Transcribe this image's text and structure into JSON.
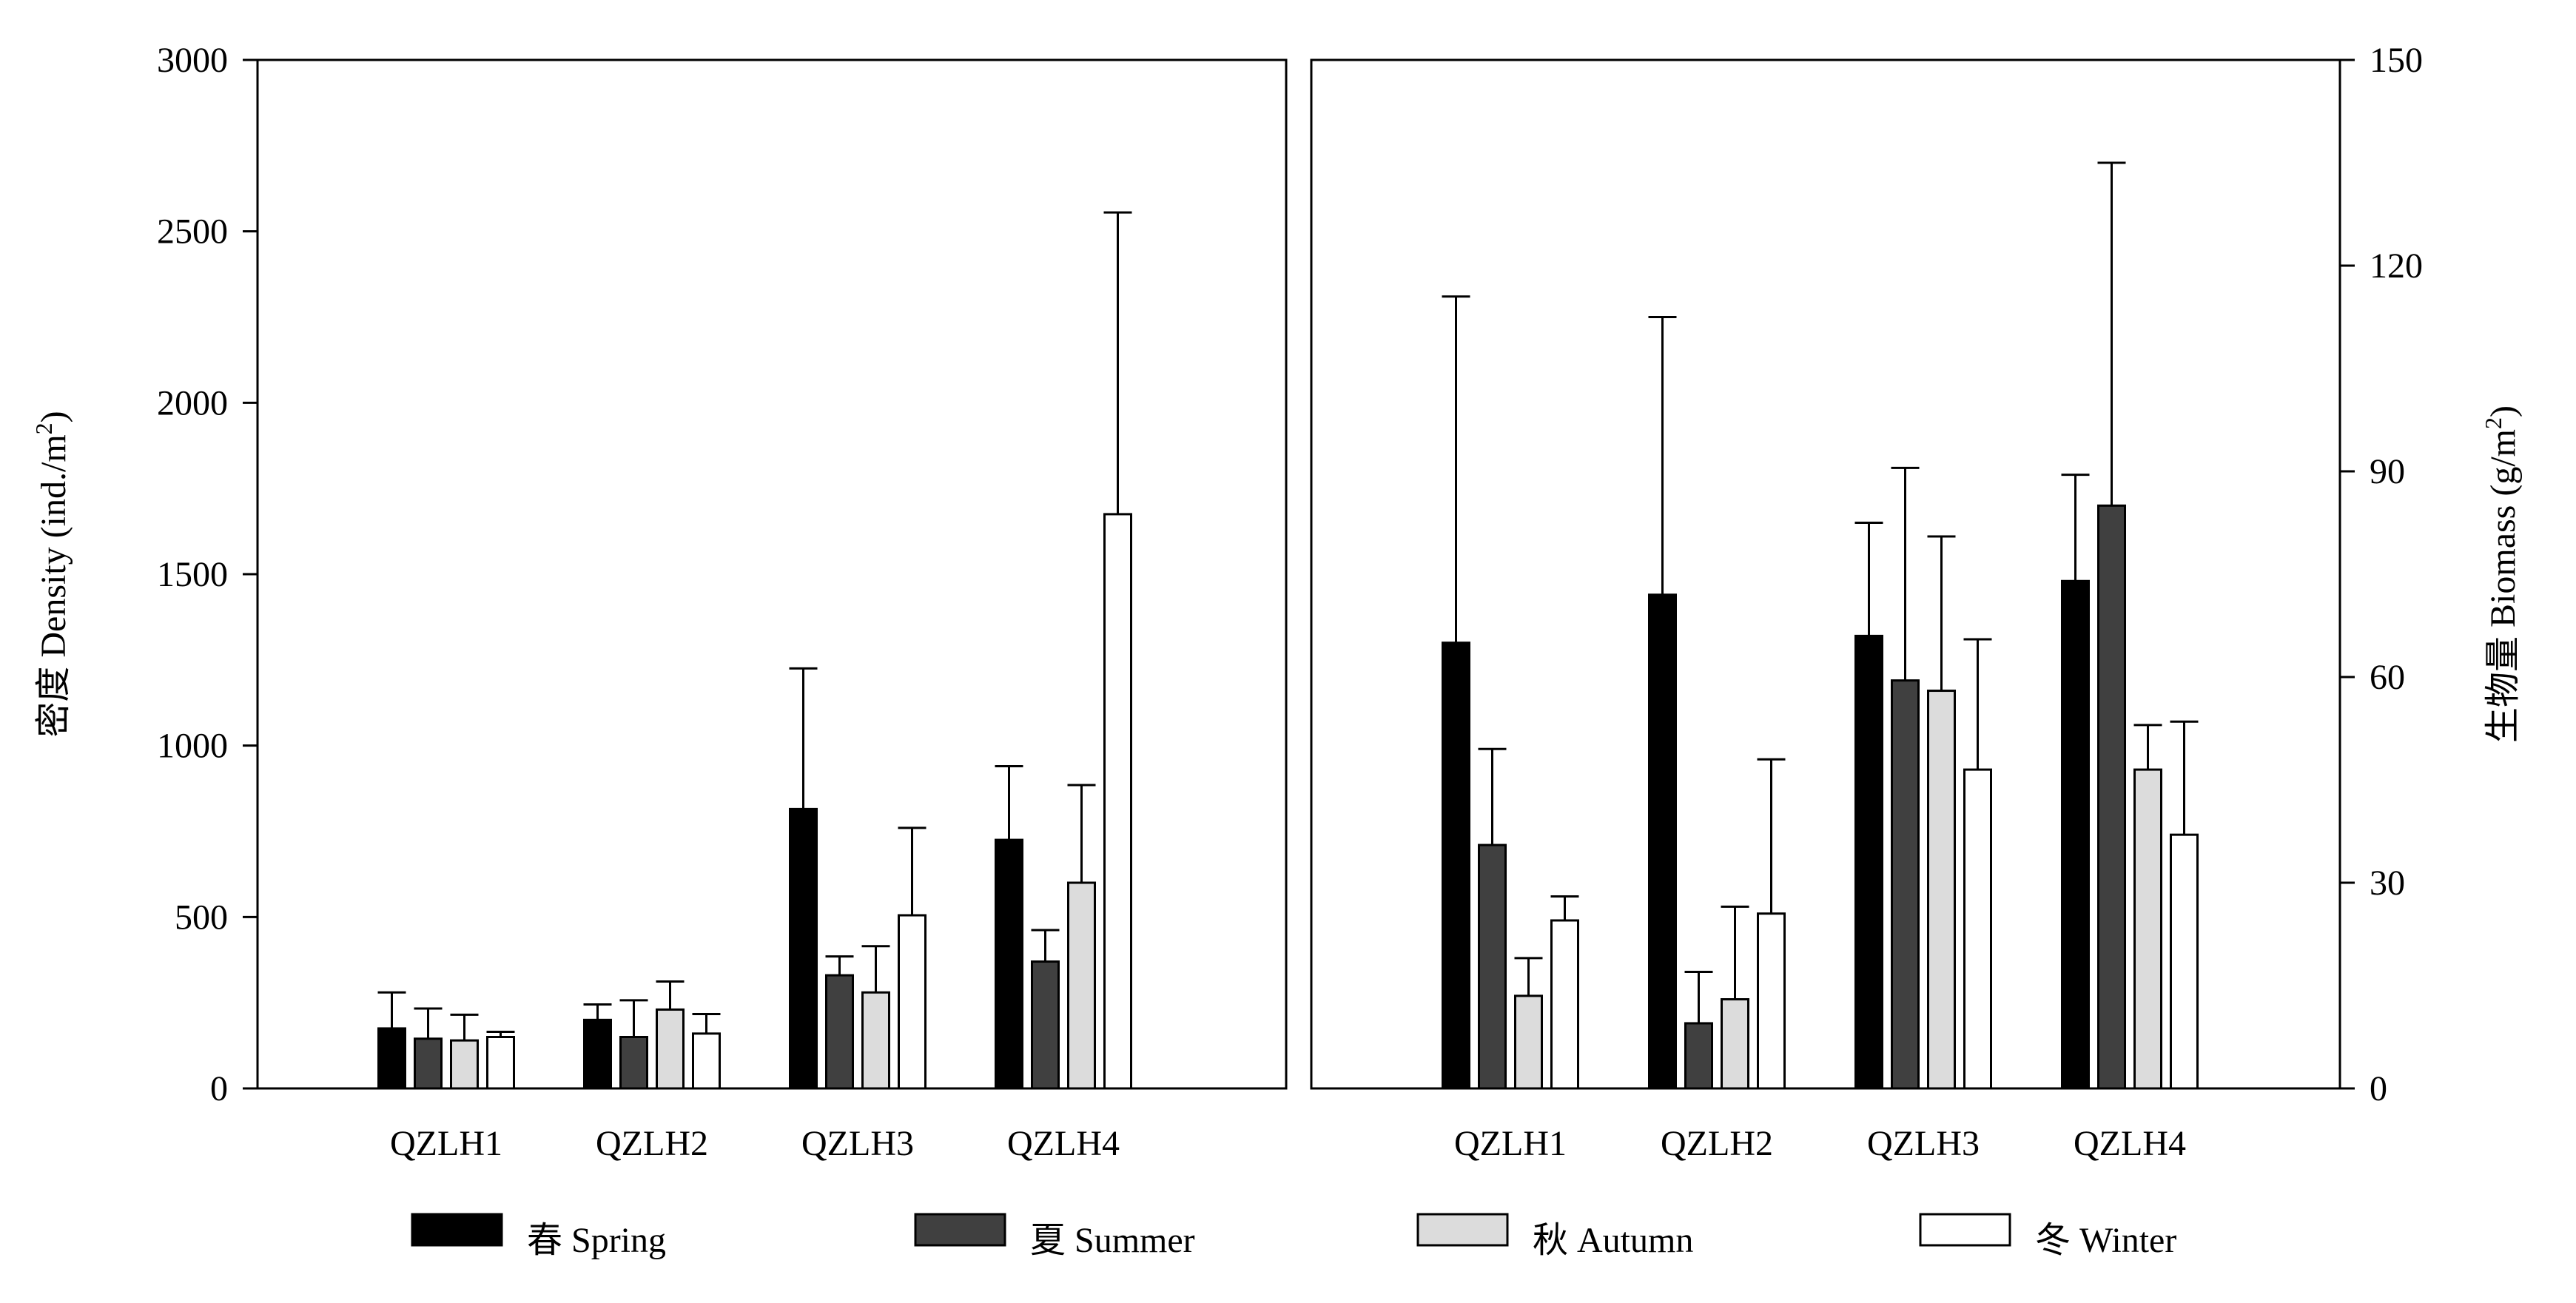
{
  "colors": {
    "spring": "#000000",
    "summer": "#404040",
    "autumn": "#dcdcdc",
    "winter": "#ffffff",
    "outline": "#000000"
  },
  "legend": [
    {
      "key": "spring",
      "label": "春  Spring"
    },
    {
      "key": "summer",
      "label": "夏  Summer"
    },
    {
      "key": "autumn",
      "label": "秋  Autumn"
    },
    {
      "key": "winter",
      "label": "冬  Winter"
    }
  ],
  "chart_data": [
    {
      "type": "bar",
      "ylabel": "密度  Density (ind./m",
      "ylabel_sup": "2",
      "ylabel_close": ")",
      "ylim": [
        0,
        3000
      ],
      "yticks": [
        "0",
        "500",
        "1000",
        "1500",
        "2000",
        "2500",
        "3000"
      ],
      "categories": [
        "QZLH1",
        "QZLH2",
        "QZLH3",
        "QZLH4"
      ],
      "series": [
        {
          "name": "春  Spring",
          "values": [
            175,
            200,
            815,
            725
          ],
          "errors": [
            105,
            45,
            410,
            215
          ]
        },
        {
          "name": "夏  Summer",
          "values": [
            145,
            150,
            330,
            370
          ],
          "errors": [
            88,
            107,
            55,
            92
          ]
        },
        {
          "name": "秋  Autumn",
          "values": [
            140,
            230,
            280,
            600
          ],
          "errors": [
            75,
            82,
            135,
            285
          ]
        },
        {
          "name": "冬  Winter",
          "values": [
            150,
            160,
            505,
            1675
          ],
          "errors": [
            15,
            57,
            255,
            880
          ]
        }
      ]
    },
    {
      "type": "bar",
      "ylabel": "生物量  Biomass (g/m",
      "ylabel_sup": "2",
      "ylabel_close": ")",
      "ylim": [
        0,
        150
      ],
      "yticks": [
        "0",
        "30",
        "60",
        "90",
        "120",
        "150"
      ],
      "categories": [
        "QZLH1",
        "QZLH2",
        "QZLH3",
        "QZLH4"
      ],
      "series": [
        {
          "name": "春  Spring",
          "values": [
            65,
            72,
            66,
            74
          ],
          "errors": [
            50.5,
            40.5,
            16.5,
            15.5
          ]
        },
        {
          "name": "夏  Summer",
          "values": [
            35.5,
            9.5,
            59.5,
            85
          ],
          "errors": [
            14,
            7.5,
            31,
            50
          ]
        },
        {
          "name": "秋  Autumn",
          "values": [
            13.5,
            13,
            58,
            46.5
          ],
          "errors": [
            5.5,
            13.5,
            22.5,
            6.5
          ]
        },
        {
          "name": "冬  Winter",
          "values": [
            24.5,
            25.5,
            46.5,
            37
          ],
          "errors": [
            3.5,
            22.5,
            19,
            16.5
          ]
        }
      ]
    }
  ]
}
